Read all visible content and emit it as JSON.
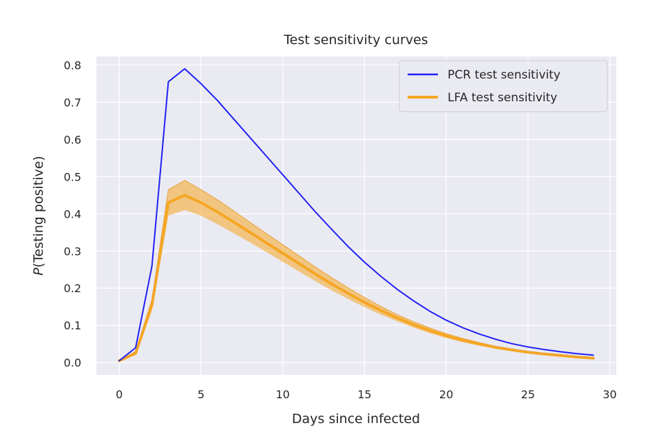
{
  "chart_data": {
    "type": "line",
    "title": "Test sensitivity curves",
    "xlabel": "Days since infected",
    "ylabel_italic": "P",
    "ylabel_rest": "(Testing positive)",
    "xlim": [
      -1.4,
      30.4
    ],
    "ylim": [
      -0.033,
      0.823
    ],
    "xticks": [
      0,
      5,
      10,
      15,
      20,
      25,
      30
    ],
    "yticks": [
      0.0,
      0.1,
      0.2,
      0.3,
      0.4,
      0.5,
      0.6,
      0.7,
      0.8
    ],
    "grid": true,
    "legend_position": "top-right",
    "x": [
      0,
      1,
      2,
      3,
      4,
      5,
      6,
      7,
      8,
      9,
      10,
      11,
      12,
      13,
      14,
      15,
      16,
      17,
      18,
      19,
      20,
      21,
      22,
      23,
      24,
      25,
      26,
      27,
      28,
      29
    ],
    "series": [
      {
        "name": "PCR test sensitivity",
        "color": "#1f1ff5",
        "values": [
          0.005,
          0.04,
          0.26,
          0.755,
          0.79,
          0.75,
          0.705,
          0.655,
          0.605,
          0.555,
          0.505,
          0.455,
          0.405,
          0.358,
          0.312,
          0.27,
          0.232,
          0.197,
          0.166,
          0.138,
          0.114,
          0.094,
          0.077,
          0.063,
          0.051,
          0.042,
          0.035,
          0.029,
          0.024,
          0.02
        ]
      },
      {
        "name": "LFA test sensitivity",
        "color": "#f5a623",
        "values": [
          0.005,
          0.025,
          0.155,
          0.43,
          0.45,
          0.43,
          0.405,
          0.378,
          0.35,
          0.322,
          0.294,
          0.266,
          0.238,
          0.211,
          0.186,
          0.162,
          0.14,
          0.12,
          0.102,
          0.086,
          0.072,
          0.06,
          0.05,
          0.041,
          0.034,
          0.028,
          0.023,
          0.019,
          0.015,
          0.012
        ],
        "lower": [
          0.004,
          0.02,
          0.14,
          0.395,
          0.41,
          0.395,
          0.372,
          0.348,
          0.323,
          0.297,
          0.271,
          0.245,
          0.219,
          0.194,
          0.171,
          0.149,
          0.129,
          0.111,
          0.094,
          0.079,
          0.066,
          0.055,
          0.046,
          0.038,
          0.031,
          0.025,
          0.021,
          0.017,
          0.013,
          0.01
        ],
        "upper": [
          0.006,
          0.03,
          0.17,
          0.465,
          0.49,
          0.465,
          0.438,
          0.408,
          0.377,
          0.347,
          0.317,
          0.287,
          0.257,
          0.228,
          0.201,
          0.175,
          0.151,
          0.129,
          0.11,
          0.093,
          0.078,
          0.065,
          0.054,
          0.044,
          0.037,
          0.03,
          0.025,
          0.021,
          0.017,
          0.014
        ]
      }
    ]
  },
  "colors": {
    "plot_background": "#eaeaf2",
    "grid": "#ffffff"
  }
}
